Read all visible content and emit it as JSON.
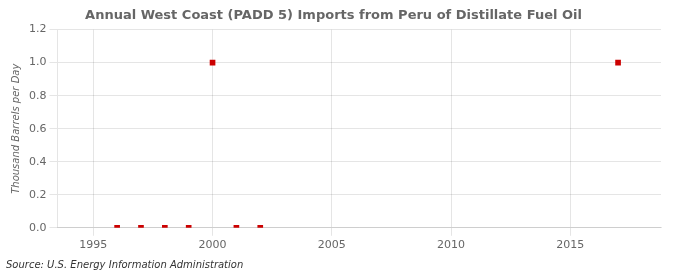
{
  "chart_data": {
    "type": "scatter",
    "title": "Annual West Coast (PADD 5) Imports from Peru of Distillate Fuel Oil",
    "ylabel": "Thousand Barrels per Day",
    "annotation": "Source: U.S. Energy Information Administration",
    "x": [
      1996,
      1997,
      1998,
      1999,
      2000,
      2001,
      2002,
      2017
    ],
    "values": [
      0.0,
      0.0,
      0.0,
      0.0,
      1.0,
      0.0,
      0.0,
      1.0
    ],
    "color": "#cc0000",
    "marker": "square",
    "xlim": [
      1993.5,
      2018.8
    ],
    "ylim": [
      0.0,
      1.2
    ],
    "xticks": [
      1995,
      2000,
      2005,
      2010,
      2015
    ],
    "yticks": [
      {
        "value": 0,
        "label": "0.0"
      },
      0.2,
      0.4,
      0.6,
      0.8,
      {
        "value": 1,
        "label": "1.0"
      },
      1.2
    ],
    "grid": true
  }
}
